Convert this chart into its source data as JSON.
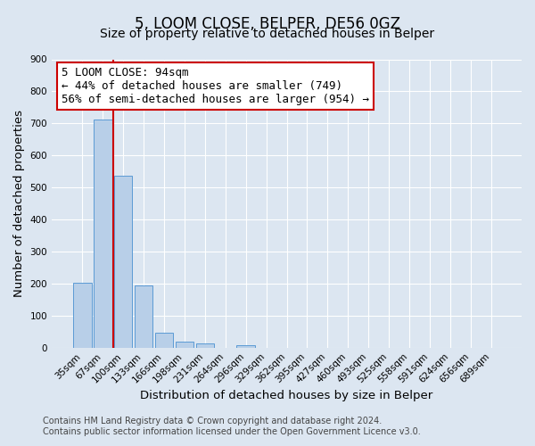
{
  "title": "5, LOOM CLOSE, BELPER, DE56 0GZ",
  "subtitle": "Size of property relative to detached houses in Belper",
  "xlabel": "Distribution of detached houses by size in Belper",
  "ylabel": "Number of detached properties",
  "categories": [
    "35sqm",
    "67sqm",
    "100sqm",
    "133sqm",
    "166sqm",
    "198sqm",
    "231sqm",
    "264sqm",
    "296sqm",
    "329sqm",
    "362sqm",
    "395sqm",
    "427sqm",
    "460sqm",
    "493sqm",
    "525sqm",
    "558sqm",
    "591sqm",
    "624sqm",
    "656sqm",
    "689sqm"
  ],
  "values": [
    203,
    712,
    537,
    193,
    46,
    20,
    14,
    0,
    8,
    0,
    0,
    0,
    0,
    0,
    0,
    0,
    0,
    0,
    0,
    0,
    0
  ],
  "bar_color": "#b8cfe8",
  "bar_edge_color": "#5b9bd5",
  "marker_line_color": "#cc0000",
  "annotation_text": "5 LOOM CLOSE: 94sqm\n← 44% of detached houses are smaller (749)\n56% of semi-detached houses are larger (954) →",
  "annotation_box_color": "#ffffff",
  "annotation_box_edge_color": "#cc0000",
  "ylim": [
    0,
    900
  ],
  "yticks": [
    0,
    100,
    200,
    300,
    400,
    500,
    600,
    700,
    800,
    900
  ],
  "footer_line1": "Contains HM Land Registry data © Crown copyright and database right 2024.",
  "footer_line2": "Contains public sector information licensed under the Open Government Licence v3.0.",
  "background_color": "#dce6f1",
  "plot_background_color": "#dce6f1",
  "title_fontsize": 12,
  "subtitle_fontsize": 10,
  "axis_label_fontsize": 9.5,
  "tick_fontsize": 7.5,
  "footer_fontsize": 7,
  "annotation_fontsize": 9
}
